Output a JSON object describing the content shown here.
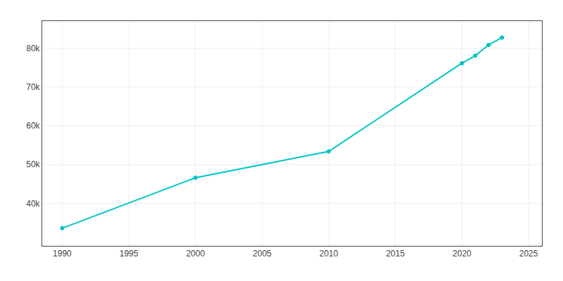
{
  "chart_data": {
    "type": "line",
    "x": [
      1990,
      2000,
      2010,
      2020,
      2021,
      2022,
      2023
    ],
    "values": [
      33556,
      46574,
      53380,
      76143,
      78060,
      80830,
      82757
    ],
    "color": "#00C5C5",
    "marker": "circle",
    "xlim": [
      1988.5,
      2026
    ],
    "xticks": [
      1990,
      1995,
      2000,
      2005,
      2010,
      2015,
      2020,
      2025
    ],
    "ylim": [
      29000,
      87000
    ],
    "yticks": [
      {
        "value": 40000,
        "label": "40k"
      },
      {
        "value": 50000,
        "label": "50k"
      },
      {
        "value": 60000,
        "label": "60k"
      },
      {
        "value": 70000,
        "label": "70k"
      },
      {
        "value": 80000,
        "label": "80k"
      }
    ],
    "grid": true
  }
}
